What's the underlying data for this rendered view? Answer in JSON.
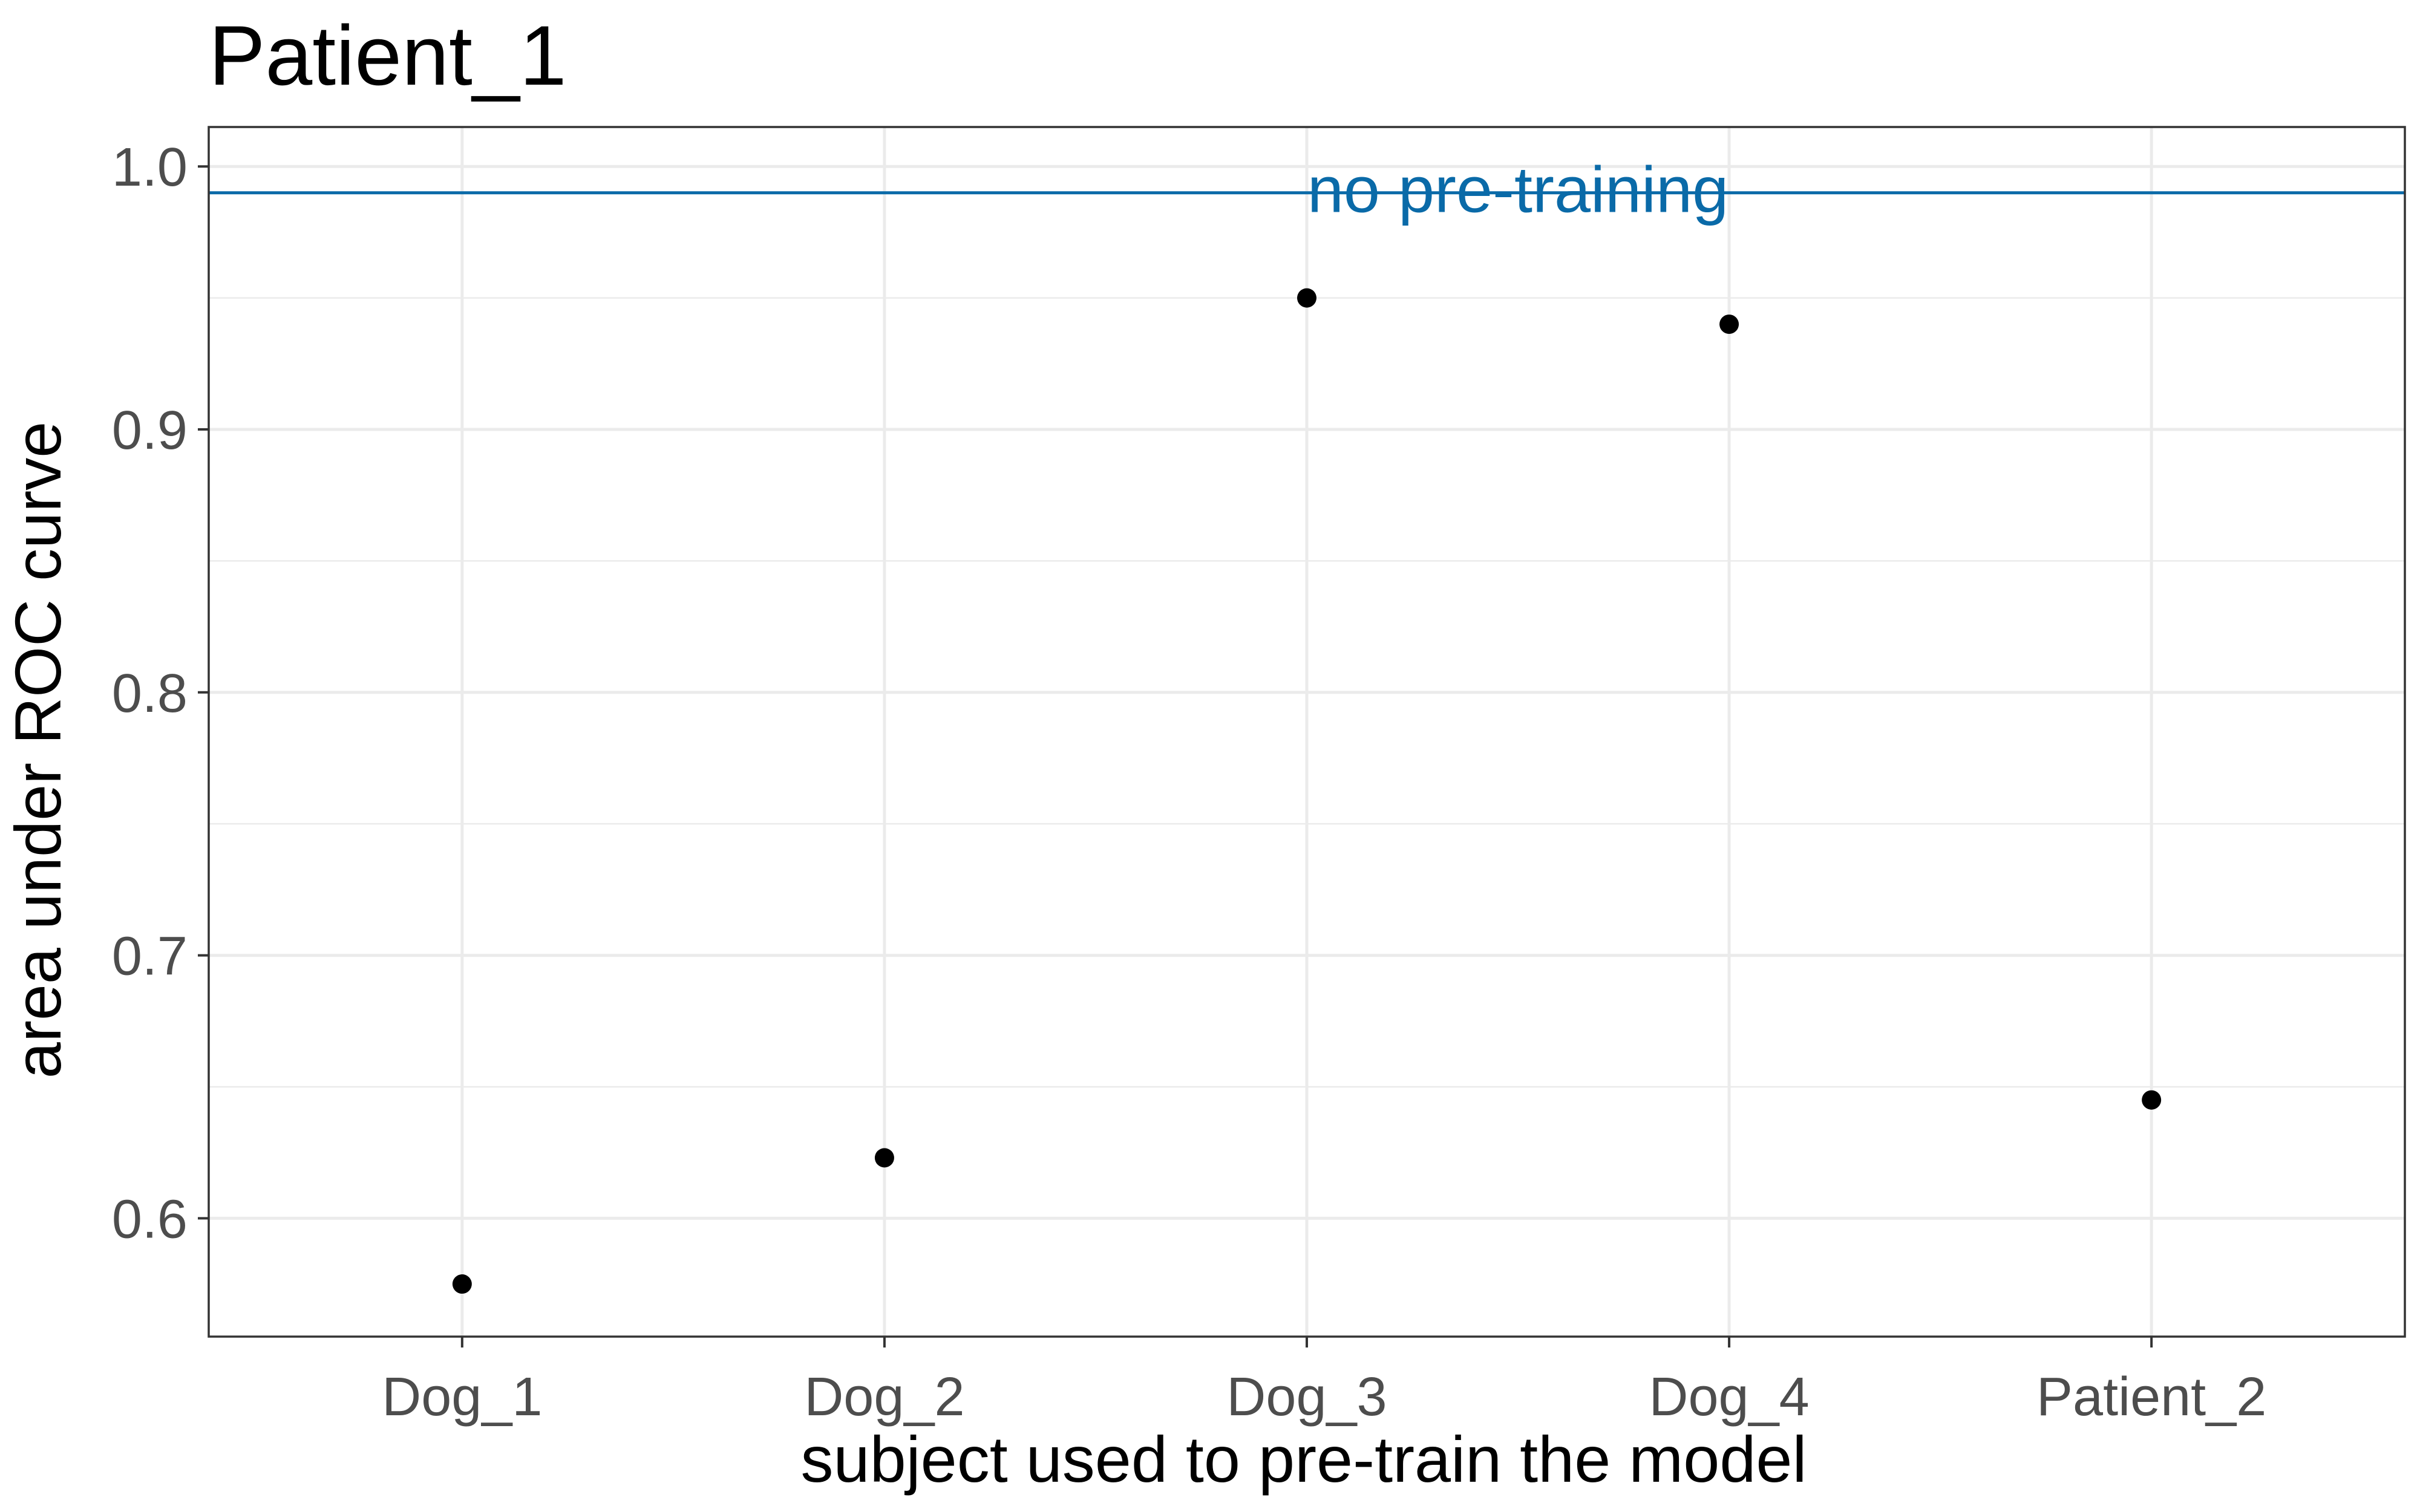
{
  "chart_data": {
    "type": "scatter",
    "title": "Patient_1",
    "xlabel": "subject used to pre-train the model",
    "ylabel": "area under ROC curve",
    "categories": [
      "Dog_1",
      "Dog_2",
      "Dog_3",
      "Dog_4",
      "Patient_2"
    ],
    "values": [
      0.575,
      0.623,
      0.95,
      0.94,
      0.645
    ],
    "ylim": [
      0.555,
      1.015
    ],
    "y_ticks": [
      0.6,
      0.7,
      0.8,
      0.9,
      1.0
    ],
    "y_tick_labels": [
      "0.6",
      "0.7",
      "0.8",
      "0.9",
      "1.0"
    ],
    "grid": true,
    "reference_line": {
      "y": 0.99,
      "label": "no pre-training",
      "color": "#0a6aa8"
    },
    "point_color": "#000000",
    "panel_border_color": "#333333",
    "grid_color": "#ebebeb"
  }
}
